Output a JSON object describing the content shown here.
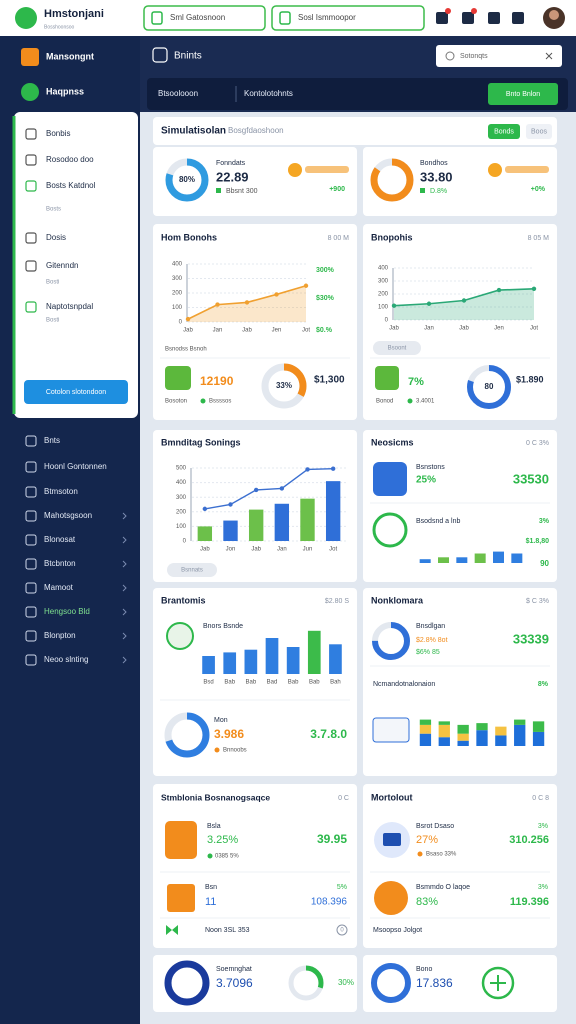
{
  "header": {
    "brand": "Hmstonjani",
    "brand_sub": "Bosshoonsoo",
    "search_a": "Sml Gatosnoon",
    "search_b": "Sosl Ismmoopor"
  },
  "sidebar": {
    "top": [
      "Mansongnt",
      "Haqpnss"
    ],
    "panel": [
      "Bonbis",
      "Rosodoo doo",
      "Bosts Katdnol",
      "Bosts",
      "Dosis",
      "Gitenndn",
      "Bosti",
      "Naptotsnpdal",
      "Bosti"
    ],
    "panel_button": "Cotolon slotondoon",
    "nav": [
      "Bnts",
      "Hoonl Gontonnen",
      "Btmsoton",
      "Mahotsgsoon",
      "Blonosat",
      "Btcbnton",
      "Mamoot",
      "Hengsoo Bld",
      "Blonpton",
      "Neoo slnting"
    ]
  },
  "toolbar": {
    "title": "Bnints",
    "search": "Sotonqts",
    "left": "Btsoolooon",
    "mid": "Kontolotohnts",
    "button": "Bnto Bnlon"
  },
  "summary": {
    "title": "Simulatisolan",
    "subtitle": "Bosgfdaoshoon",
    "button": "Bonds",
    "tag": "Boos"
  },
  "kpis": [
    {
      "label": "Fonndats",
      "value": "22.89",
      "note": "Bbsnt 300",
      "change": "+900",
      "ring": {
        "value": 80,
        "label": "80%"
      },
      "color": "#2f9be0"
    },
    {
      "label": "Bondhos",
      "value": "33.80",
      "note": "D.8%",
      "change": "+0%",
      "ring": {
        "value": 85
      },
      "color": "#f28c1c"
    }
  ],
  "stats": {
    "rev_left": {
      "value": "12190",
      "note": "Bosoton",
      "note2": "Bssssos",
      "ring": {
        "value": 33,
        "label": "33%"
      },
      "total": "$1,300"
    },
    "rev_right": {
      "value": "7%",
      "note": "Bonod",
      "note2": "3.4001",
      "ring": {
        "value": 80,
        "label": "80"
      },
      "total": "$1.890"
    }
  },
  "neosicms": {
    "title": "Neosicms",
    "meta": "0 C 3%",
    "item1": {
      "label": "Bsnstons",
      "change": "25%",
      "value": "33530"
    },
    "item2": {
      "label": "Bsodsnd a lnb",
      "change": "3%",
      "value": "$1.8,80",
      "small": "90"
    }
  },
  "brantomis_bottom": {
    "label": "Mon",
    "value": "3.986",
    "note": "Bnnoobs",
    "total": "3.7.8.0",
    "ring": {
      "value": 70
    }
  },
  "nonklomara": {
    "title": "Nonklomara",
    "meta": "$ C 3%",
    "label": "Bnsdlgan",
    "line1": "$2.8% 8ot",
    "line2": "$6% 85",
    "value": "33339",
    "ring": {
      "value": 75
    },
    "sub": "Ncmandotnalonaion",
    "change": "8%"
  },
  "stmblonia": {
    "title": "Stmblonia Bosnanogsaqce",
    "meta": "0 C",
    "item1": {
      "label": "Bsla",
      "change": "3.25%",
      "note": "0385 5%",
      "value": "39.95"
    },
    "item2": {
      "label": "Bsn",
      "change": "5%",
      "value": "11",
      "total": "108.396"
    },
    "footer": "Noon 3SL 353",
    "footer_value": "0"
  },
  "mortolout": {
    "title": "Mortolout",
    "meta": "0 C 8",
    "item1": {
      "label": "Bsrot Dsaso",
      "change": "27%",
      "note": "Bsaso 33%",
      "value": "310.256",
      "badge": "3%"
    },
    "item2": {
      "label": "Bsmmdo O laqoe",
      "change": "83%",
      "value": "119.396",
      "badge": "3%"
    },
    "footer": "Msoopso Jolgot"
  },
  "bottom": {
    "left": {
      "title": "Soemnghat",
      "value": "3.7096",
      "ring": {
        "value": 30,
        "label": "30%"
      }
    },
    "right": {
      "title": "Bono",
      "value": "17.836"
    }
  },
  "chart_data": [
    {
      "type": "line",
      "title": "Hom Bonohs",
      "meta": "8 00 M",
      "categories": [
        "Jab",
        "Jan",
        "Jab",
        "Jen",
        "Jot"
      ],
      "values": [
        20,
        120,
        135,
        190,
        250
      ],
      "color": "#f0a030",
      "area": true,
      "ylim": [
        0,
        400
      ],
      "yticks": [
        0,
        100,
        200,
        300,
        400
      ],
      "annotations": [
        "300%",
        "$30%",
        "$0.%"
      ],
      "caption": "Bsnodss Bsnoh"
    },
    {
      "type": "line",
      "title": "Bnopohis",
      "meta": "8 05 M",
      "categories": [
        "Jab",
        "Jan",
        "Jab",
        "Jen",
        "Jot"
      ],
      "values": [
        110,
        125,
        150,
        230,
        240
      ],
      "color": "#2aa876",
      "area": true,
      "ylim": [
        0,
        400
      ],
      "yticks": [
        0,
        100,
        200,
        300,
        400
      ],
      "caption": "Bsoont"
    },
    {
      "type": "combo",
      "title": "Bmnditag Sonings",
      "categories": [
        "Jab",
        "Jon",
        "Jab",
        "Jan",
        "Jun",
        "Jot"
      ],
      "values": [
        100,
        140,
        215,
        255,
        290,
        410
      ],
      "colors": [
        "#6cc04a",
        "#2f6fd8"
      ],
      "line_values": [
        220,
        250,
        350,
        360,
        490,
        495
      ],
      "line_color": "#3b6fd0",
      "ylim": [
        0,
        500
      ],
      "yticks": [
        0,
        100,
        200,
        300,
        400,
        500
      ],
      "caption": "Bsnnats"
    },
    {
      "type": "bar",
      "title": "Brantomis",
      "meta": "$2.80 S",
      "legend": "Bnors Bsnde",
      "categories": [
        "Bsd",
        "Bab",
        "Bab",
        "Bad",
        "Bab",
        "Bab",
        "Bah"
      ],
      "values": [
        20,
        24,
        27,
        40,
        30,
        48,
        33
      ],
      "colors": [
        "#2f7ee0",
        "#2f7ee0",
        "#2f7ee0",
        "#2f7ee0",
        "#2f7ee0",
        "#3cbb4a",
        "#2f7ee0"
      ],
      "ylim": [
        0,
        60
      ]
    },
    {
      "type": "stacked-bar",
      "series": [
        {
          "color": "#1e6fd9",
          "values": [
            14,
            10,
            6,
            18,
            12,
            24,
            16
          ]
        },
        {
          "color": "#f5c242",
          "values": [
            10,
            14,
            8,
            0,
            10,
            0,
            0
          ]
        },
        {
          "color": "#3cbb4a",
          "values": [
            6,
            4,
            10,
            8,
            0,
            6,
            12
          ]
        }
      ],
      "ylim": [
        0,
        50
      ]
    },
    {
      "type": "bar",
      "values": [
        2,
        3,
        3,
        5,
        6,
        5
      ],
      "colors": [
        "#2f7ee0",
        "#6cc04a",
        "#2f7ee0",
        "#6cc04a",
        "#2f7ee0",
        "#2f7ee0"
      ],
      "ylim": [
        0,
        10
      ]
    }
  ]
}
